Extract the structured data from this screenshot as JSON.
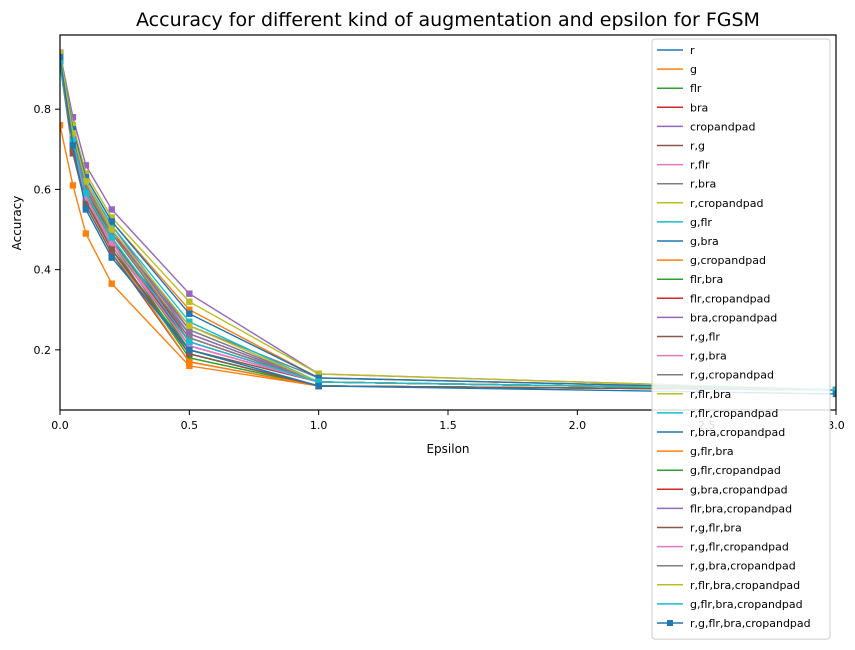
{
  "chart_data": {
    "type": "line",
    "title": "Accuracy for different kind of augmentation and epsilon for FGSM",
    "xlabel": "Epsilon",
    "ylabel": "Accuracy",
    "xlim": [
      0.0,
      3.0
    ],
    "ylim": [
      0.05,
      0.985
    ],
    "xticks": [
      0.0,
      0.5,
      1.0,
      1.5,
      2.0,
      2.5,
      3.0
    ],
    "xtick_labels": [
      "0.0",
      "0.5",
      "1.0",
      "1.5",
      "2.0",
      "2.5",
      "3.0"
    ],
    "yticks": [
      0.2,
      0.4,
      0.6,
      0.8
    ],
    "ytick_labels": [
      "0.2",
      "0.4",
      "0.6",
      "0.8"
    ],
    "grid": false,
    "legend_position": "right",
    "x": [
      0.0,
      0.05,
      0.1,
      0.2,
      0.5,
      1.0,
      3.0
    ],
    "series": [
      {
        "name": "r",
        "color": "#1f77b4",
        "values": [
          0.94,
          0.71,
          0.58,
          0.47,
          0.22,
          0.12,
          0.1
        ]
      },
      {
        "name": "g",
        "color": "#ff7f0e",
        "values": [
          0.76,
          0.61,
          0.49,
          0.365,
          0.16,
          0.11,
          0.1
        ]
      },
      {
        "name": "flr",
        "color": "#2ca02c",
        "values": [
          0.93,
          0.7,
          0.57,
          0.46,
          0.18,
          0.11,
          0.1
        ]
      },
      {
        "name": "bra",
        "color": "#d62728",
        "values": [
          0.94,
          0.72,
          0.6,
          0.48,
          0.21,
          0.12,
          0.1
        ]
      },
      {
        "name": "cropandpad",
        "color": "#9467bd",
        "values": [
          0.94,
          0.78,
          0.66,
          0.55,
          0.34,
          0.14,
          0.1
        ]
      },
      {
        "name": "r,g",
        "color": "#8c564b",
        "values": [
          0.92,
          0.7,
          0.57,
          0.45,
          0.2,
          0.12,
          0.1
        ]
      },
      {
        "name": "r,flr",
        "color": "#e377c2",
        "values": [
          0.94,
          0.72,
          0.59,
          0.47,
          0.23,
          0.12,
          0.1
        ]
      },
      {
        "name": "r,bra",
        "color": "#7f7f7f",
        "values": [
          0.94,
          0.73,
          0.61,
          0.49,
          0.26,
          0.13,
          0.1
        ]
      },
      {
        "name": "r,cropandpad",
        "color": "#bcbd22",
        "values": [
          0.94,
          0.76,
          0.64,
          0.53,
          0.32,
          0.14,
          0.1
        ]
      },
      {
        "name": "g,flr",
        "color": "#17becf",
        "values": [
          0.91,
          0.69,
          0.56,
          0.44,
          0.19,
          0.11,
          0.1
        ]
      },
      {
        "name": "g,bra",
        "color": "#1f77b4",
        "values": [
          0.92,
          0.71,
          0.58,
          0.47,
          0.24,
          0.12,
          0.1
        ]
      },
      {
        "name": "g,cropandpad",
        "color": "#ff7f0e",
        "values": [
          0.92,
          0.75,
          0.63,
          0.52,
          0.3,
          0.13,
          0.1
        ]
      },
      {
        "name": "flr,bra",
        "color": "#2ca02c",
        "values": [
          0.94,
          0.72,
          0.59,
          0.47,
          0.19,
          0.11,
          0.1
        ]
      },
      {
        "name": "flr,cropandpad",
        "color": "#d62728",
        "values": [
          0.94,
          0.73,
          0.62,
          0.5,
          0.22,
          0.12,
          0.1
        ]
      },
      {
        "name": "bra,cropandpad",
        "color": "#9467bd",
        "values": [
          0.94,
          0.74,
          0.62,
          0.51,
          0.25,
          0.12,
          0.1
        ]
      },
      {
        "name": "r,g,flr",
        "color": "#8c564b",
        "values": [
          0.92,
          0.69,
          0.56,
          0.44,
          0.17,
          0.11,
          0.1
        ]
      },
      {
        "name": "r,g,bra",
        "color": "#e377c2",
        "values": [
          0.93,
          0.71,
          0.58,
          0.46,
          0.21,
          0.12,
          0.1
        ]
      },
      {
        "name": "r,g,cropandpad",
        "color": "#7f7f7f",
        "values": [
          0.93,
          0.72,
          0.6,
          0.49,
          0.25,
          0.12,
          0.1
        ]
      },
      {
        "name": "r,flr,bra",
        "color": "#bcbd22",
        "values": [
          0.94,
          0.73,
          0.61,
          0.49,
          0.24,
          0.12,
          0.1
        ]
      },
      {
        "name": "r,flr,cropandpad",
        "color": "#17becf",
        "values": [
          0.94,
          0.74,
          0.62,
          0.51,
          0.27,
          0.12,
          0.1
        ]
      },
      {
        "name": "r,bra,cropandpad",
        "color": "#1f77b4",
        "values": [
          0.94,
          0.75,
          0.63,
          0.52,
          0.29,
          0.13,
          0.1
        ]
      },
      {
        "name": "g,flr,bra",
        "color": "#ff7f0e",
        "values": [
          0.92,
          0.7,
          0.57,
          0.45,
          0.17,
          0.11,
          0.1
        ]
      },
      {
        "name": "g,flr,cropandpad",
        "color": "#2ca02c",
        "values": [
          0.92,
          0.71,
          0.59,
          0.48,
          0.2,
          0.11,
          0.1
        ]
      },
      {
        "name": "g,bra,cropandpad",
        "color": "#d62728",
        "values": [
          0.93,
          0.72,
          0.6,
          0.49,
          0.23,
          0.12,
          0.1
        ]
      },
      {
        "name": "flr,bra,cropandpad",
        "color": "#9467bd",
        "values": [
          0.94,
          0.73,
          0.61,
          0.5,
          0.24,
          0.12,
          0.1
        ]
      },
      {
        "name": "r,g,flr,bra",
        "color": "#8c564b",
        "values": [
          0.93,
          0.7,
          0.57,
          0.45,
          0.19,
          0.11,
          0.1
        ]
      },
      {
        "name": "r,g,flr,cropandpad",
        "color": "#e377c2",
        "values": [
          0.93,
          0.71,
          0.58,
          0.47,
          0.21,
          0.12,
          0.1
        ]
      },
      {
        "name": "r,g,bra,cropandpad",
        "color": "#7f7f7f",
        "values": [
          0.93,
          0.72,
          0.6,
          0.49,
          0.23,
          0.12,
          0.1
        ]
      },
      {
        "name": "r,flr,bra,cropandpad",
        "color": "#bcbd22",
        "values": [
          0.94,
          0.74,
          0.62,
          0.5,
          0.26,
          0.12,
          0.1
        ]
      },
      {
        "name": "g,flr,bra,cropandpad",
        "color": "#17becf",
        "values": [
          0.92,
          0.72,
          0.59,
          0.48,
          0.22,
          0.12,
          0.1
        ]
      },
      {
        "name": "r,g,flr,bra,cropandpad",
        "color": "#1f77b4",
        "values": [
          0.93,
          0.71,
          0.55,
          0.43,
          0.2,
          0.11,
          0.09
        ]
      }
    ]
  }
}
